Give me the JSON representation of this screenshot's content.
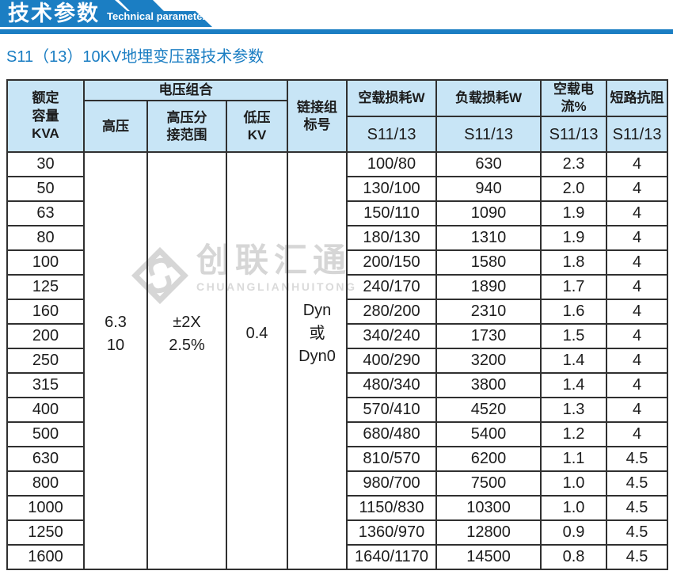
{
  "banner": {
    "title": "技术参数",
    "subtitle_en": "Technical parameter"
  },
  "page": {
    "title": "S11（13）10KV地埋变压器技术参数"
  },
  "watermark": {
    "name_cn": "创联汇通",
    "name_en": "CHUANGLIANHUITONG"
  },
  "colors": {
    "banner_blue": "#1b7ec3",
    "title_blue": "#1b7ec3",
    "header_bg": "#c8e5f6",
    "border": "#303030",
    "watermark_gray": "#d6d6d6"
  },
  "table": {
    "header": {
      "capacity": "额定\n容量\nKVA",
      "voltage_group": "电压组合",
      "hv": "高压",
      "hv_tap": "高压分\n接范围",
      "lv": "低压\nKV",
      "vector": "链接组\n标号",
      "no_load_loss": "空载损耗W",
      "load_loss": "负载损耗W",
      "no_load_current": "空载电流%",
      "impedance": "短路抗阻",
      "model": "S11/13"
    },
    "merged": {
      "hv": "6.3\n10",
      "hv_tap": "±2X\n2.5%",
      "lv": "0.4",
      "vector": "Dyn\n或\nDyn0"
    },
    "rows": [
      {
        "capacity": "30",
        "no_load_loss": "100/80",
        "load_loss": "630",
        "no_load_current": "2.3",
        "impedance": "4"
      },
      {
        "capacity": "50",
        "no_load_loss": "130/100",
        "load_loss": "940",
        "no_load_current": "2.0",
        "impedance": "4"
      },
      {
        "capacity": "63",
        "no_load_loss": "150/110",
        "load_loss": "1090",
        "no_load_current": "1.9",
        "impedance": "4"
      },
      {
        "capacity": "80",
        "no_load_loss": "180/130",
        "load_loss": "1310",
        "no_load_current": "1.9",
        "impedance": "4"
      },
      {
        "capacity": "100",
        "no_load_loss": "200/150",
        "load_loss": "1580",
        "no_load_current": "1.8",
        "impedance": "4"
      },
      {
        "capacity": "125",
        "no_load_loss": "240/170",
        "load_loss": "1890",
        "no_load_current": "1.7",
        "impedance": "4"
      },
      {
        "capacity": "160",
        "no_load_loss": "280/200",
        "load_loss": "2310",
        "no_load_current": "1.6",
        "impedance": "4"
      },
      {
        "capacity": "200",
        "no_load_loss": "340/240",
        "load_loss": "1730",
        "no_load_current": "1.5",
        "impedance": "4"
      },
      {
        "capacity": "250",
        "no_load_loss": "400/290",
        "load_loss": "3200",
        "no_load_current": "1.4",
        "impedance": "4"
      },
      {
        "capacity": "315",
        "no_load_loss": "480/340",
        "load_loss": "3800",
        "no_load_current": "1.4",
        "impedance": "4"
      },
      {
        "capacity": "400",
        "no_load_loss": "570/410",
        "load_loss": "4520",
        "no_load_current": "1.3",
        "impedance": "4"
      },
      {
        "capacity": "500",
        "no_load_loss": "680/480",
        "load_loss": "5400",
        "no_load_current": "1.2",
        "impedance": "4"
      },
      {
        "capacity": "630",
        "no_load_loss": "810/570",
        "load_loss": "6200",
        "no_load_current": "1.1",
        "impedance": "4.5"
      },
      {
        "capacity": "800",
        "no_load_loss": "980/700",
        "load_loss": "7500",
        "no_load_current": "1.0",
        "impedance": "4.5"
      },
      {
        "capacity": "1000",
        "no_load_loss": "1150/830",
        "load_loss": "10300",
        "no_load_current": "1.0",
        "impedance": "4.5"
      },
      {
        "capacity": "1250",
        "no_load_loss": "1360/970",
        "load_loss": "12800",
        "no_load_current": "0.9",
        "impedance": "4.5"
      },
      {
        "capacity": "1600",
        "no_load_loss": "1640/1170",
        "load_loss": "14500",
        "no_load_current": "0.8",
        "impedance": "4.5"
      }
    ]
  }
}
